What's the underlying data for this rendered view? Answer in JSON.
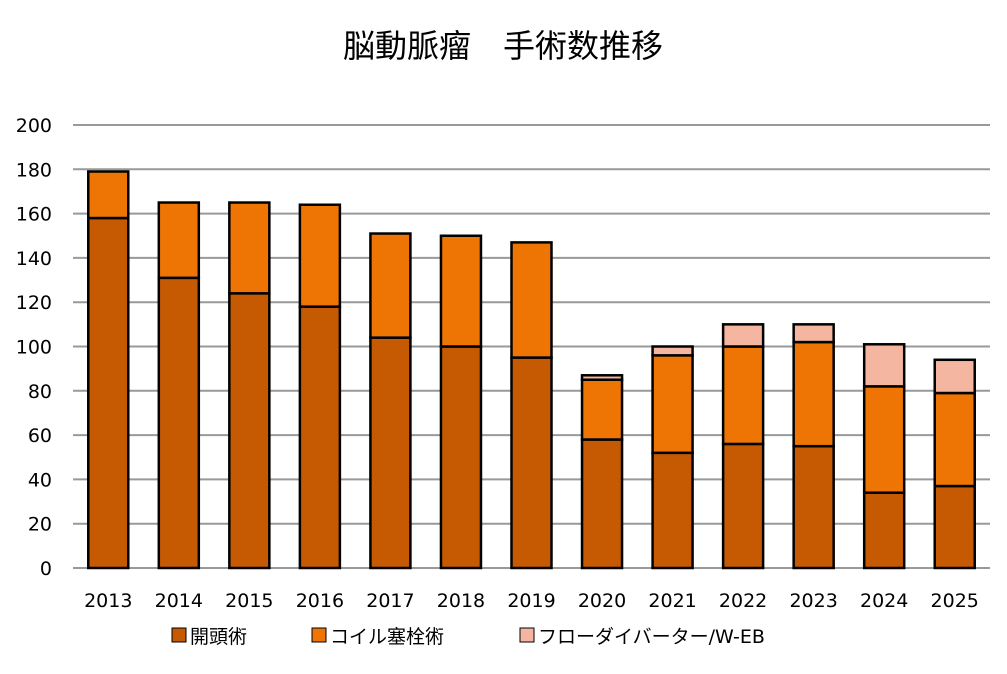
{
  "chart_data": {
    "type": "bar",
    "stacked": true,
    "title": "脳動脈瘤　手術数推移",
    "xlabel": "",
    "ylabel": "",
    "ylim": [
      0,
      200
    ],
    "yticks": [
      0,
      20,
      40,
      60,
      80,
      100,
      120,
      140,
      160,
      180,
      200
    ],
    "grid": true,
    "legend_position": "bottom",
    "categories": [
      "2013",
      "2014",
      "2015",
      "2016",
      "2017",
      "2018",
      "2019",
      "2020",
      "2021",
      "2022",
      "2023",
      "2024",
      "2025"
    ],
    "series": [
      {
        "name": "開頭術",
        "color": "#C55A03",
        "values": [
          158,
          131,
          124,
          118,
          104,
          100,
          95,
          58,
          52,
          56,
          55,
          34,
          37
        ]
      },
      {
        "name": "コイル塞栓術",
        "color": "#EE7504",
        "values": [
          21,
          34,
          41,
          46,
          47,
          50,
          52,
          27,
          44,
          44,
          47,
          48,
          42
        ]
      },
      {
        "name": "フローダイバーター/W-EB",
        "color": "#F4B6A0",
        "values": [
          0,
          0,
          0,
          0,
          0,
          0,
          0,
          2,
          4,
          10,
          8,
          19,
          15
        ]
      }
    ]
  }
}
